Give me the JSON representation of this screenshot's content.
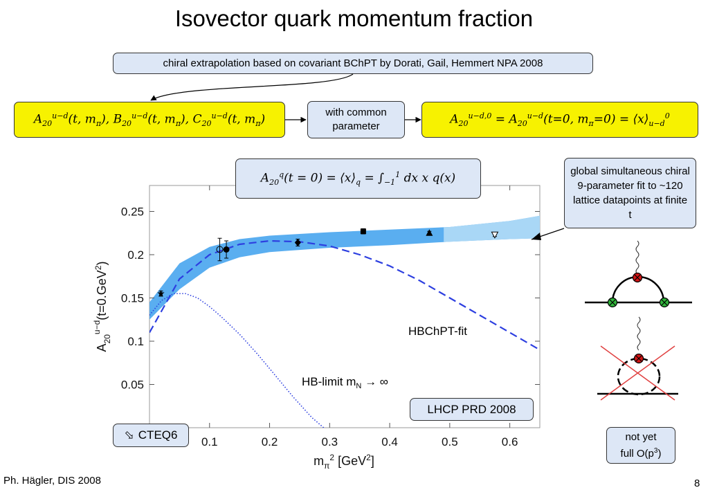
{
  "slide": {
    "title": "Isovector quark momentum fraction",
    "footer_left": "Ph. Hägler, DIS 2008",
    "page_number": "8"
  },
  "callouts": {
    "chiral_extrapolation": "chiral extrapolation based on covariant BChPT by Dorati, Gail, Hemmert NPA 2008",
    "common_parameter": "with common parameter",
    "global_fit": "global simultaneous chiral 9-parameter fit to ~120 lattice datapoints at finite t",
    "lhcp": "LHCP PRD 2008",
    "cteq6": "CTEQ6",
    "not_yet": "not yet full O(p³)"
  },
  "formulas": {
    "form_factors": "A20u−d(t, mπ), B20u−d(t, mπ), C20u−d(t, mπ)",
    "a20_zero": "A20u−d,0 = A20u−d(t=0, mπ=0) = ⟨x⟩0u−d",
    "a20_q": "A20q(t = 0) = ⟨x⟩q = ∫−11 dx x q(x)"
  },
  "chart_data": {
    "type": "line",
    "ylabel": "A20u−d(t=0.GeV²)",
    "xlabel": "mπ² [GeV²]",
    "xlim": [
      0.0,
      0.65
    ],
    "ylim": [
      0.0,
      0.28
    ],
    "x_ticks": [
      "0.1",
      "0.2",
      "0.3",
      "0.4",
      "0.5",
      "0.6"
    ],
    "y_ticks": [
      "0.05",
      "0.1",
      "0.15",
      "0.2",
      "0.25"
    ],
    "series": [
      {
        "name": "HBChPT-fit",
        "style": "dashed",
        "x": [
          0.0,
          0.05,
          0.1,
          0.15,
          0.2,
          0.25,
          0.3,
          0.35,
          0.4,
          0.45,
          0.5,
          0.55,
          0.6,
          0.65
        ],
        "y": [
          0.11,
          0.172,
          0.2,
          0.212,
          0.216,
          0.215,
          0.21,
          0.2,
          0.187,
          0.17,
          0.15,
          0.13,
          0.11,
          0.09
        ]
      },
      {
        "name": "HB-limit mN → ∞",
        "style": "dotted",
        "x": [
          0.0,
          0.02,
          0.04,
          0.06,
          0.08,
          0.1,
          0.12,
          0.15,
          0.18,
          0.21,
          0.24,
          0.27,
          0.29
        ],
        "y": [
          0.13,
          0.147,
          0.155,
          0.155,
          0.15,
          0.14,
          0.128,
          0.108,
          0.085,
          0.06,
          0.035,
          0.012,
          0.0
        ]
      }
    ],
    "band": {
      "x": [
        0.0,
        0.05,
        0.1,
        0.15,
        0.2,
        0.3,
        0.4,
        0.5,
        0.6,
        0.65
      ],
      "lower": [
        0.125,
        0.16,
        0.185,
        0.197,
        0.203,
        0.208,
        0.211,
        0.215,
        0.218,
        0.219
      ],
      "upper": [
        0.145,
        0.19,
        0.209,
        0.218,
        0.222,
        0.226,
        0.229,
        0.232,
        0.239,
        0.245
      ]
    },
    "points": [
      {
        "x": 0.019,
        "y": 0.155,
        "err": 0.003,
        "marker": "star"
      },
      {
        "x": 0.117,
        "y": 0.206,
        "err": 0.013,
        "marker": "open-circle"
      },
      {
        "x": 0.128,
        "y": 0.206,
        "err": 0.01,
        "marker": "circle"
      },
      {
        "x": 0.247,
        "y": 0.214,
        "err": 0.004,
        "marker": "diamond"
      },
      {
        "x": 0.356,
        "y": 0.227,
        "err": 0.003,
        "marker": "square"
      },
      {
        "x": 0.466,
        "y": 0.225,
        "err": 0.002,
        "marker": "triangle"
      },
      {
        "x": 0.575,
        "y": 0.223,
        "err": 0.002,
        "marker": "open-triangle-down"
      }
    ],
    "annotations": [
      "HBChPT-fit",
      "HB-limit mN → ∞"
    ],
    "colors": {
      "band": "#5aaef0",
      "band_light": "#a9d7f6",
      "curve": "#2d3fe0"
    }
  },
  "diagrams": {
    "vertex_red": "#d01515",
    "vertex_green": "#2fb33a",
    "cross_red": "#e04040"
  }
}
